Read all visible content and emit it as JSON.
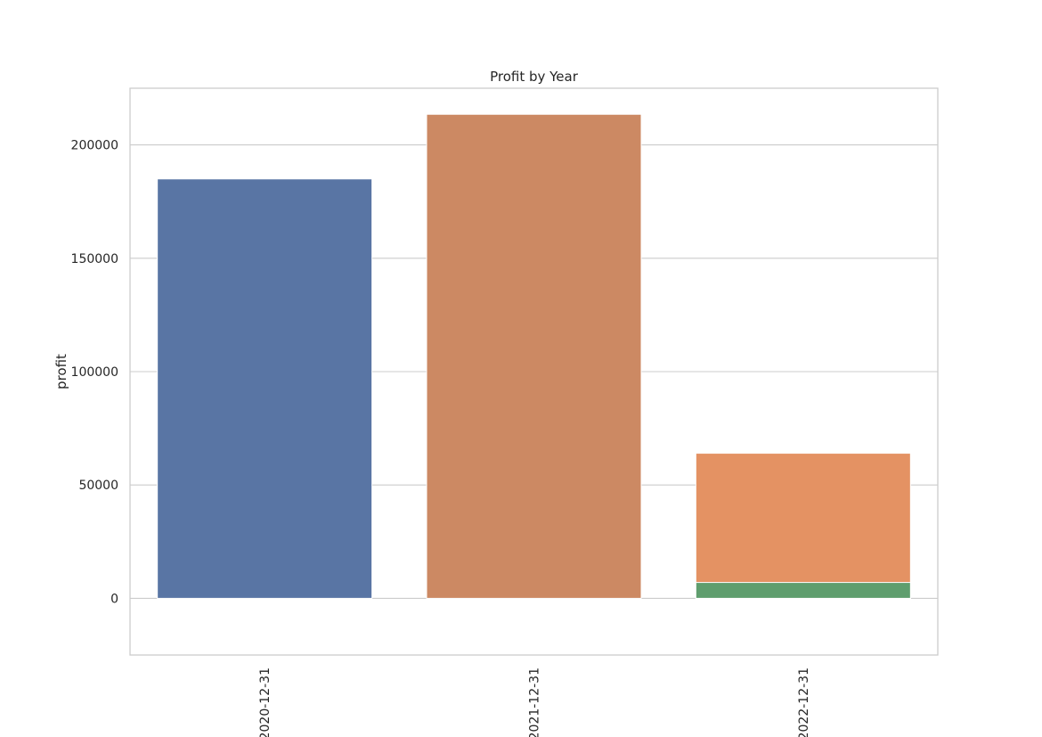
{
  "chart_data": {
    "type": "bar",
    "title": "Profit by Year",
    "xlabel": "",
    "ylabel": "profit",
    "categories": [
      "2020-12-31",
      "2021-12-31",
      "2022-12-31"
    ],
    "bars": [
      {
        "category": "2020-12-31",
        "value": 185000,
        "color": "#5975a4"
      },
      {
        "category": "2021-12-31",
        "value": 213500,
        "color": "#cc8963"
      },
      {
        "category": "2022-12-31",
        "value": 64000,
        "color": "#e49263"
      },
      {
        "category": "2022-12-31",
        "value": 7000,
        "color": "#5f9e6e"
      }
    ],
    "ylim": [
      -25000,
      225000
    ],
    "yticks": [
      0,
      50000,
      100000,
      150000,
      200000
    ],
    "ytick_labels": [
      "0",
      "50000",
      "100000",
      "150000",
      "200000"
    ],
    "grid": "horizontal",
    "legend": "none"
  }
}
